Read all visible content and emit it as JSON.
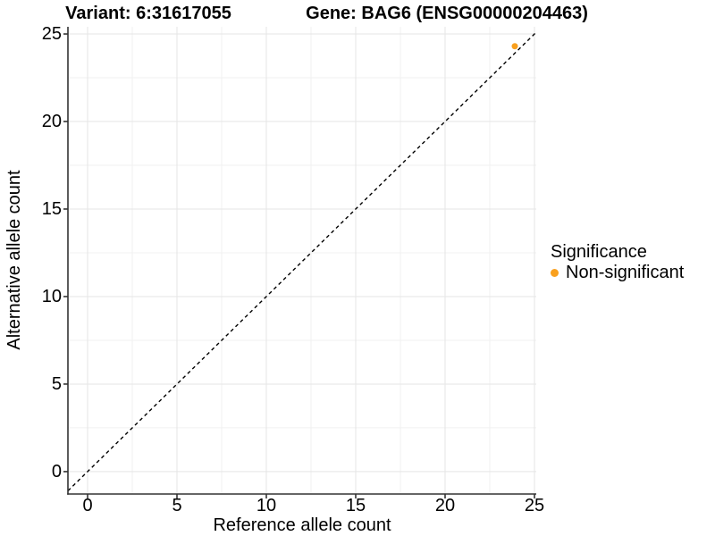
{
  "chart_data": {
    "type": "scatter",
    "title_left": "Variant: 6:31617055",
    "title_right": "Gene: BAG6 (ENSG00000204463)",
    "xlabel": "Reference allele count",
    "ylabel": "Alternative allele count",
    "xlim": [
      -1.1,
      25.1
    ],
    "ylim": [
      -1.28,
      25.41
    ],
    "x_ticks": [
      0,
      5,
      10,
      15,
      20,
      25
    ],
    "y_ticks": [
      0,
      5,
      10,
      15,
      20,
      25
    ],
    "x_minor_gridlines": [
      2.5,
      7.5,
      12.5,
      17.5,
      22.5
    ],
    "y_minor_gridlines": [
      2.5,
      7.5,
      12.5,
      17.5,
      22.5
    ],
    "grid": true,
    "identity_line": {
      "style": "dashed",
      "color": "#000000",
      "from": -1.1,
      "to": 25.1
    },
    "series": [
      {
        "name": "Non-significant",
        "color": "#F9A01E",
        "points": [
          {
            "x": 23.9,
            "y": 24.3
          }
        ]
      }
    ],
    "legend": {
      "title": "Significance",
      "position": "right",
      "items": [
        {
          "label": "Non-significant",
          "color": "#F9A01E"
        }
      ]
    },
    "colors": {
      "axis": "#333333",
      "grid_major": "#e5e5e5",
      "grid_minor": "#f0f0f0"
    }
  }
}
